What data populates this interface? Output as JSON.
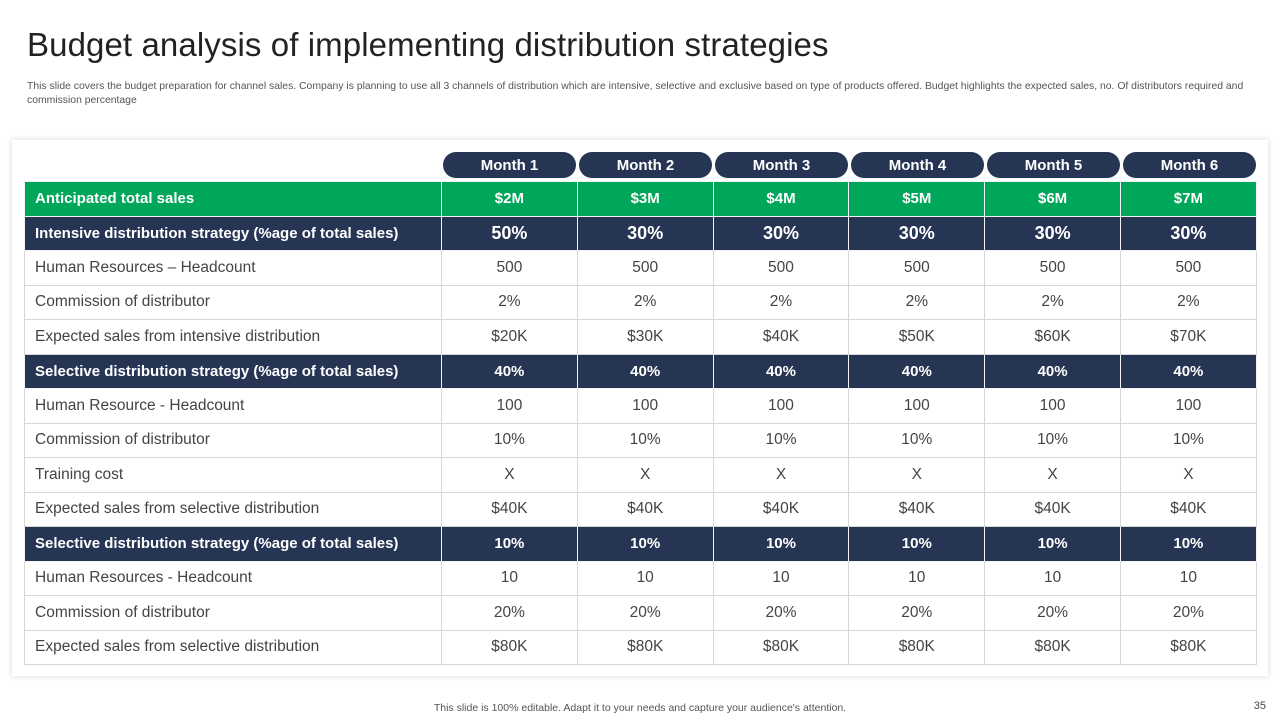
{
  "slide": {
    "title": "Budget analysis of implementing distribution strategies",
    "subtitle": "This slide covers the budget preparation for channel sales. Company is planning to use all 3 channels of distribution which are intensive, selective and exclusive based on type  of products offered. Budget highlights the expected sales, no. Of distributors required and commission percentage",
    "footer": "This slide is 100% editable. Adapt it to your needs and capture your audience's attention.",
    "page_number": "35"
  },
  "table": {
    "months": [
      "Month 1",
      "Month 2",
      "Month 3",
      "Month 4",
      "Month 5",
      "Month 6"
    ],
    "rows": [
      {
        "label": "Anticipated total sales",
        "values": [
          "$2M",
          "$3M",
          "$4M",
          "$5M",
          "$6M",
          "$7M"
        ]
      },
      {
        "label": "Intensive distribution strategy (%age of total sales)",
        "values": [
          "50%",
          "30%",
          "30%",
          "30%",
          "30%",
          "30%"
        ]
      },
      {
        "label": "Human Resources – Headcount",
        "values": [
          "500",
          "500",
          "500",
          "500",
          "500",
          "500"
        ]
      },
      {
        "label": "Commission of distributor",
        "values": [
          "2%",
          "2%",
          "2%",
          "2%",
          "2%",
          "2%"
        ]
      },
      {
        "label": "Expected sales from intensive distribution",
        "values": [
          "$20K",
          "$30K",
          "$40K",
          "$50K",
          "$60K",
          "$70K"
        ]
      },
      {
        "label": "Selective  distribution strategy (%age of total sales)",
        "values": [
          "40%",
          "40%",
          "40%",
          "40%",
          "40%",
          "40%"
        ]
      },
      {
        "label": "Human Resource - Headcount",
        "values": [
          "100",
          "100",
          "100",
          "100",
          "100",
          "100"
        ]
      },
      {
        "label": "Commission of distributor",
        "values": [
          "10%",
          "10%",
          "10%",
          "10%",
          "10%",
          "10%"
        ]
      },
      {
        "label": "Training cost",
        "values": [
          "X",
          "X",
          "X",
          "X",
          "X",
          "X"
        ]
      },
      {
        "label": "Expected sales from selective distribution",
        "values": [
          "$40K",
          "$40K",
          "$40K",
          "$40K",
          "$40K",
          "$40K"
        ]
      },
      {
        "label": "Selective  distribution strategy (%age of total sales)",
        "values": [
          "10%",
          "10%",
          "10%",
          "10%",
          "10%",
          "10%"
        ]
      },
      {
        "label": "Human Resources - Headcount",
        "values": [
          "10",
          "10",
          "10",
          "10",
          "10",
          "10"
        ]
      },
      {
        "label": "Commission of distributor",
        "values": [
          "20%",
          "20%",
          "20%",
          "20%",
          "20%",
          "20%"
        ]
      },
      {
        "label": "Expected sales from selective distribution",
        "values": [
          "$80K",
          "$80K",
          "$80K",
          "$80K",
          "$80K",
          "$80K"
        ]
      }
    ]
  },
  "colors": {
    "navy": "#263554",
    "green": "#00a65a"
  }
}
